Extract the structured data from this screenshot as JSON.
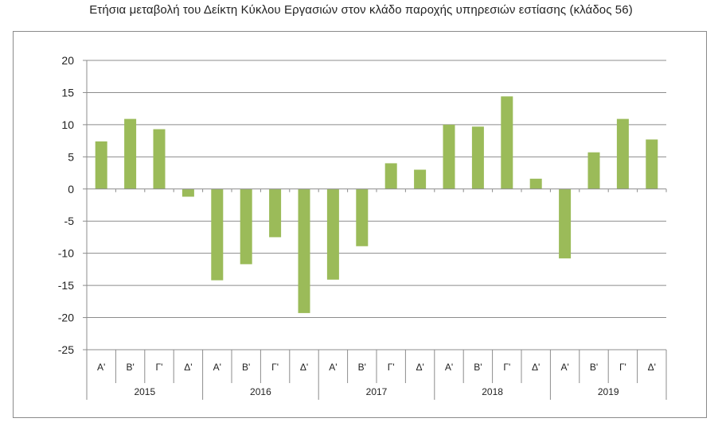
{
  "chart_data": {
    "type": "bar",
    "title": "Ετήσια μεταβολή του Δείκτη Κύκλου Εργασιών στον κλάδο παροχής υπηρεσιών  εστίασης (κλάδος 56)",
    "xlabel": "",
    "ylabel": "",
    "ylim": [
      -25,
      20
    ],
    "yticks": [
      "20",
      "15",
      "10",
      "5",
      "0",
      "-5",
      "-10",
      "-15",
      "-20",
      "-25"
    ],
    "years": [
      "2015",
      "2016",
      "2017",
      "2018",
      "2019"
    ],
    "quarters": [
      "Α'",
      "Β'",
      "Γ'",
      "Δ'"
    ],
    "categories": [
      "2015 Α'",
      "2015 Β'",
      "2015 Γ'",
      "2015 Δ'",
      "2016 Α'",
      "2016 Β'",
      "2016 Γ'",
      "2016 Δ'",
      "2017 Α'",
      "2017 Β'",
      "2017 Γ'",
      "2017 Δ'",
      "2018 Α'",
      "2018 Β'",
      "2018 Γ'",
      "2018 Δ'",
      "2019 Α'",
      "2019 Β'",
      "2019 Γ'",
      "2019 Δ'"
    ],
    "values": [
      7.4,
      10.9,
      9.3,
      -1.2,
      -14.2,
      -11.7,
      -7.5,
      -19.3,
      -14.1,
      -8.9,
      4.0,
      3.0,
      10.0,
      9.7,
      14.4,
      1.6,
      -10.8,
      5.7,
      10.9,
      7.7
    ],
    "bar_color": "#9bbb59",
    "grid": true,
    "legend": "none"
  }
}
